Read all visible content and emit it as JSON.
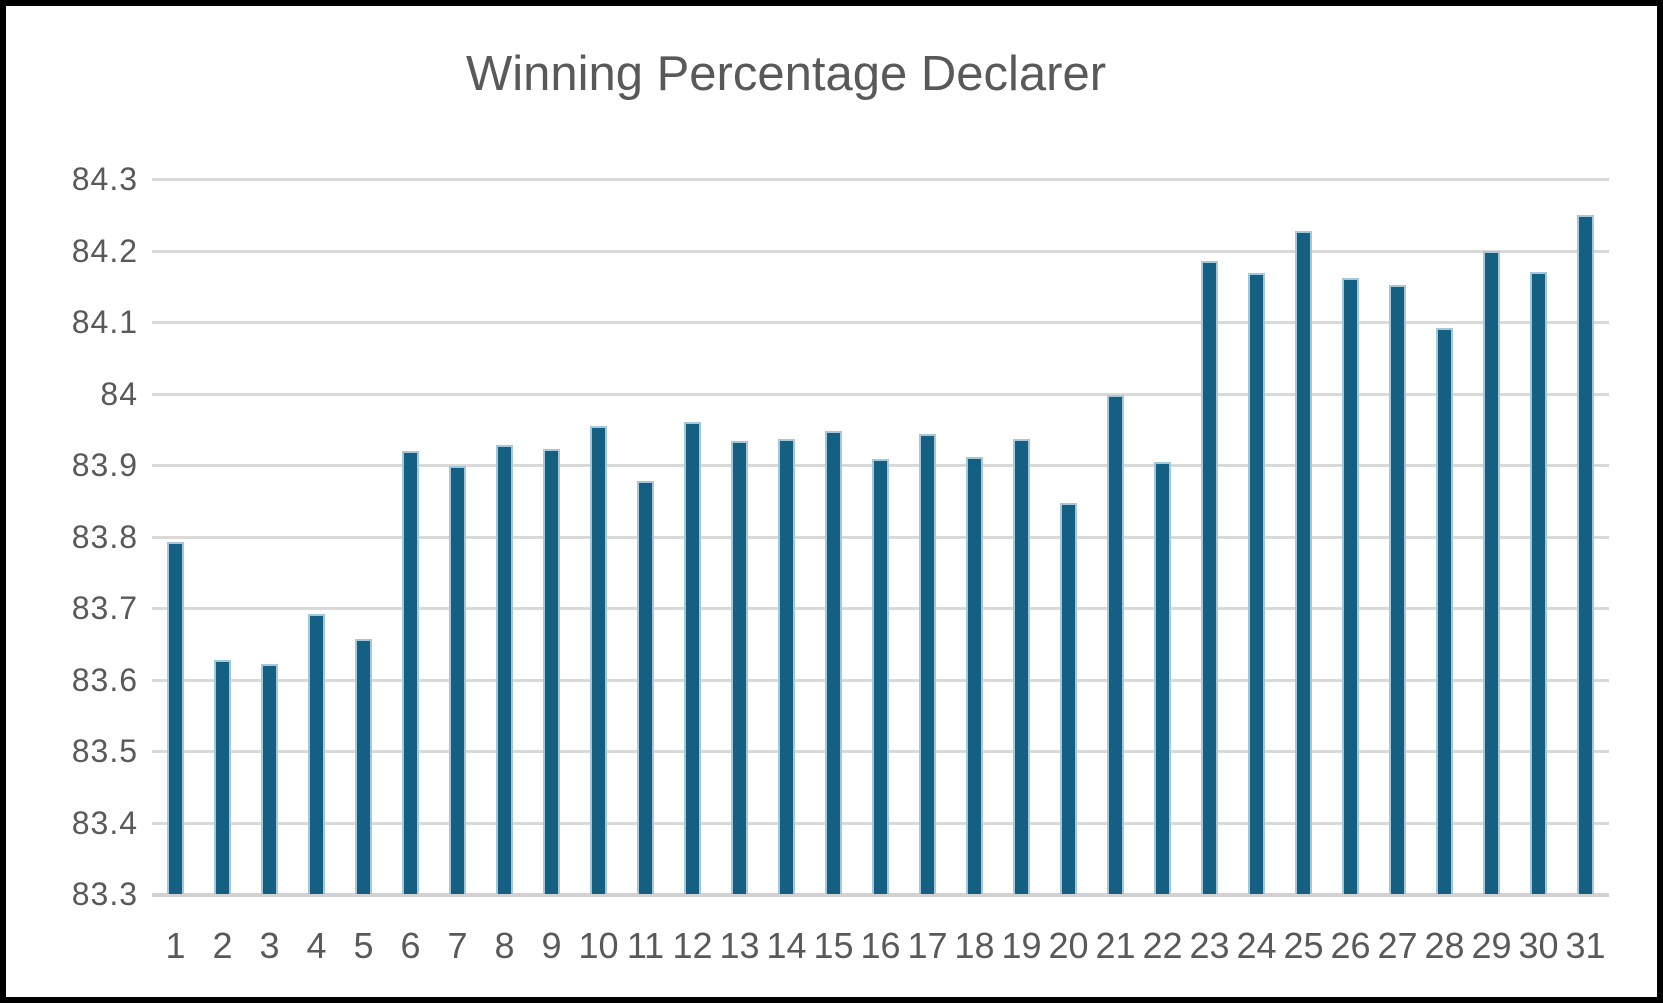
{
  "chart_data": {
    "type": "bar",
    "title": "Winning Percentage Declarer",
    "xlabel": "",
    "ylabel": "",
    "categories": [
      "1",
      "2",
      "3",
      "4",
      "5",
      "6",
      "7",
      "8",
      "9",
      "10",
      "11",
      "12",
      "13",
      "14",
      "15",
      "16",
      "17",
      "18",
      "19",
      "20",
      "21",
      "22",
      "23",
      "24",
      "25",
      "26",
      "27",
      "28",
      "29",
      "30",
      "31"
    ],
    "values": [
      83.793,
      83.627,
      83.622,
      83.691,
      83.656,
      83.92,
      83.898,
      83.928,
      83.922,
      83.955,
      83.878,
      83.96,
      83.934,
      83.937,
      83.948,
      83.909,
      83.943,
      83.911,
      83.937,
      83.847,
      83.998,
      83.904,
      84.185,
      84.168,
      84.227,
      84.162,
      84.152,
      84.091,
      84.2,
      84.17,
      84.25
    ],
    "ylim": [
      83.3,
      84.3
    ],
    "yticks": [
      {
        "label": "83.3",
        "value": 83.3
      },
      {
        "label": "83.4",
        "value": 83.4
      },
      {
        "label": "83.5",
        "value": 83.5
      },
      {
        "label": "83.6",
        "value": 83.6
      },
      {
        "label": "83.7",
        "value": 83.7
      },
      {
        "label": "83.8",
        "value": 83.8
      },
      {
        "label": "83.9",
        "value": 83.9
      },
      {
        "label": "84",
        "value": 84.0
      },
      {
        "label": "84.1",
        "value": 84.1
      },
      {
        "label": "84.2",
        "value": 84.2
      },
      {
        "label": "84.3",
        "value": 84.3
      }
    ],
    "grid": "horizontal",
    "legend": "none",
    "colors": {
      "bar_fill": "#156082",
      "bar_border": "#a5c8d8",
      "gridline": "#d9d9d9",
      "text": "#595959",
      "frame_border": "#000000",
      "background": "#ffffff"
    }
  }
}
